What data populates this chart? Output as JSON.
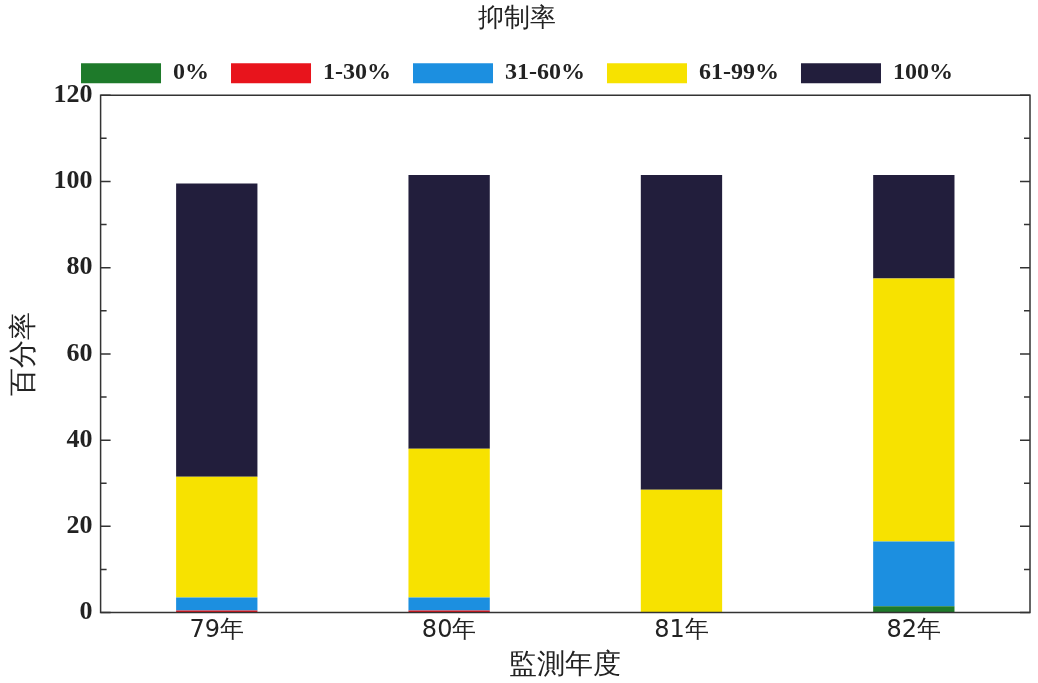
{
  "chart_data": {
    "type": "bar",
    "stacked": true,
    "legend_title": "抑制率",
    "legend": "top",
    "xlabel": "監測年度",
    "ylabel": "百分率",
    "categories": [
      "79年",
      "80年",
      "81年",
      "82年"
    ],
    "series": [
      {
        "name": "0%",
        "color": "#1e7a2a",
        "values": [
          0,
          0,
          0,
          1.5
        ]
      },
      {
        "name": "1-30%",
        "color": "#e8141c",
        "values": [
          0.5,
          0.5,
          0,
          0
        ]
      },
      {
        "name": "31-60%",
        "color": "#1c8fe0",
        "values": [
          3,
          3,
          0,
          15
        ]
      },
      {
        "name": "61-99%",
        "color": "#f7e200",
        "values": [
          28,
          34.5,
          28.5,
          61
        ]
      },
      {
        "name": "100%",
        "color": "#221e3c",
        "values": [
          68,
          63.5,
          73,
          24
        ]
      }
    ],
    "ylim": [
      0,
      120
    ],
    "yticks": [
      0,
      {
        "value": 10,
        "label": null
      },
      20,
      {
        "value": 30,
        "label": null
      },
      40,
      {
        "value": 50,
        "label": null
      },
      60,
      {
        "value": 70,
        "label": null
      },
      80,
      {
        "value": 90,
        "label": null
      },
      100,
      {
        "value": 110,
        "label": null
      },
      120
    ],
    "grid": false
  }
}
